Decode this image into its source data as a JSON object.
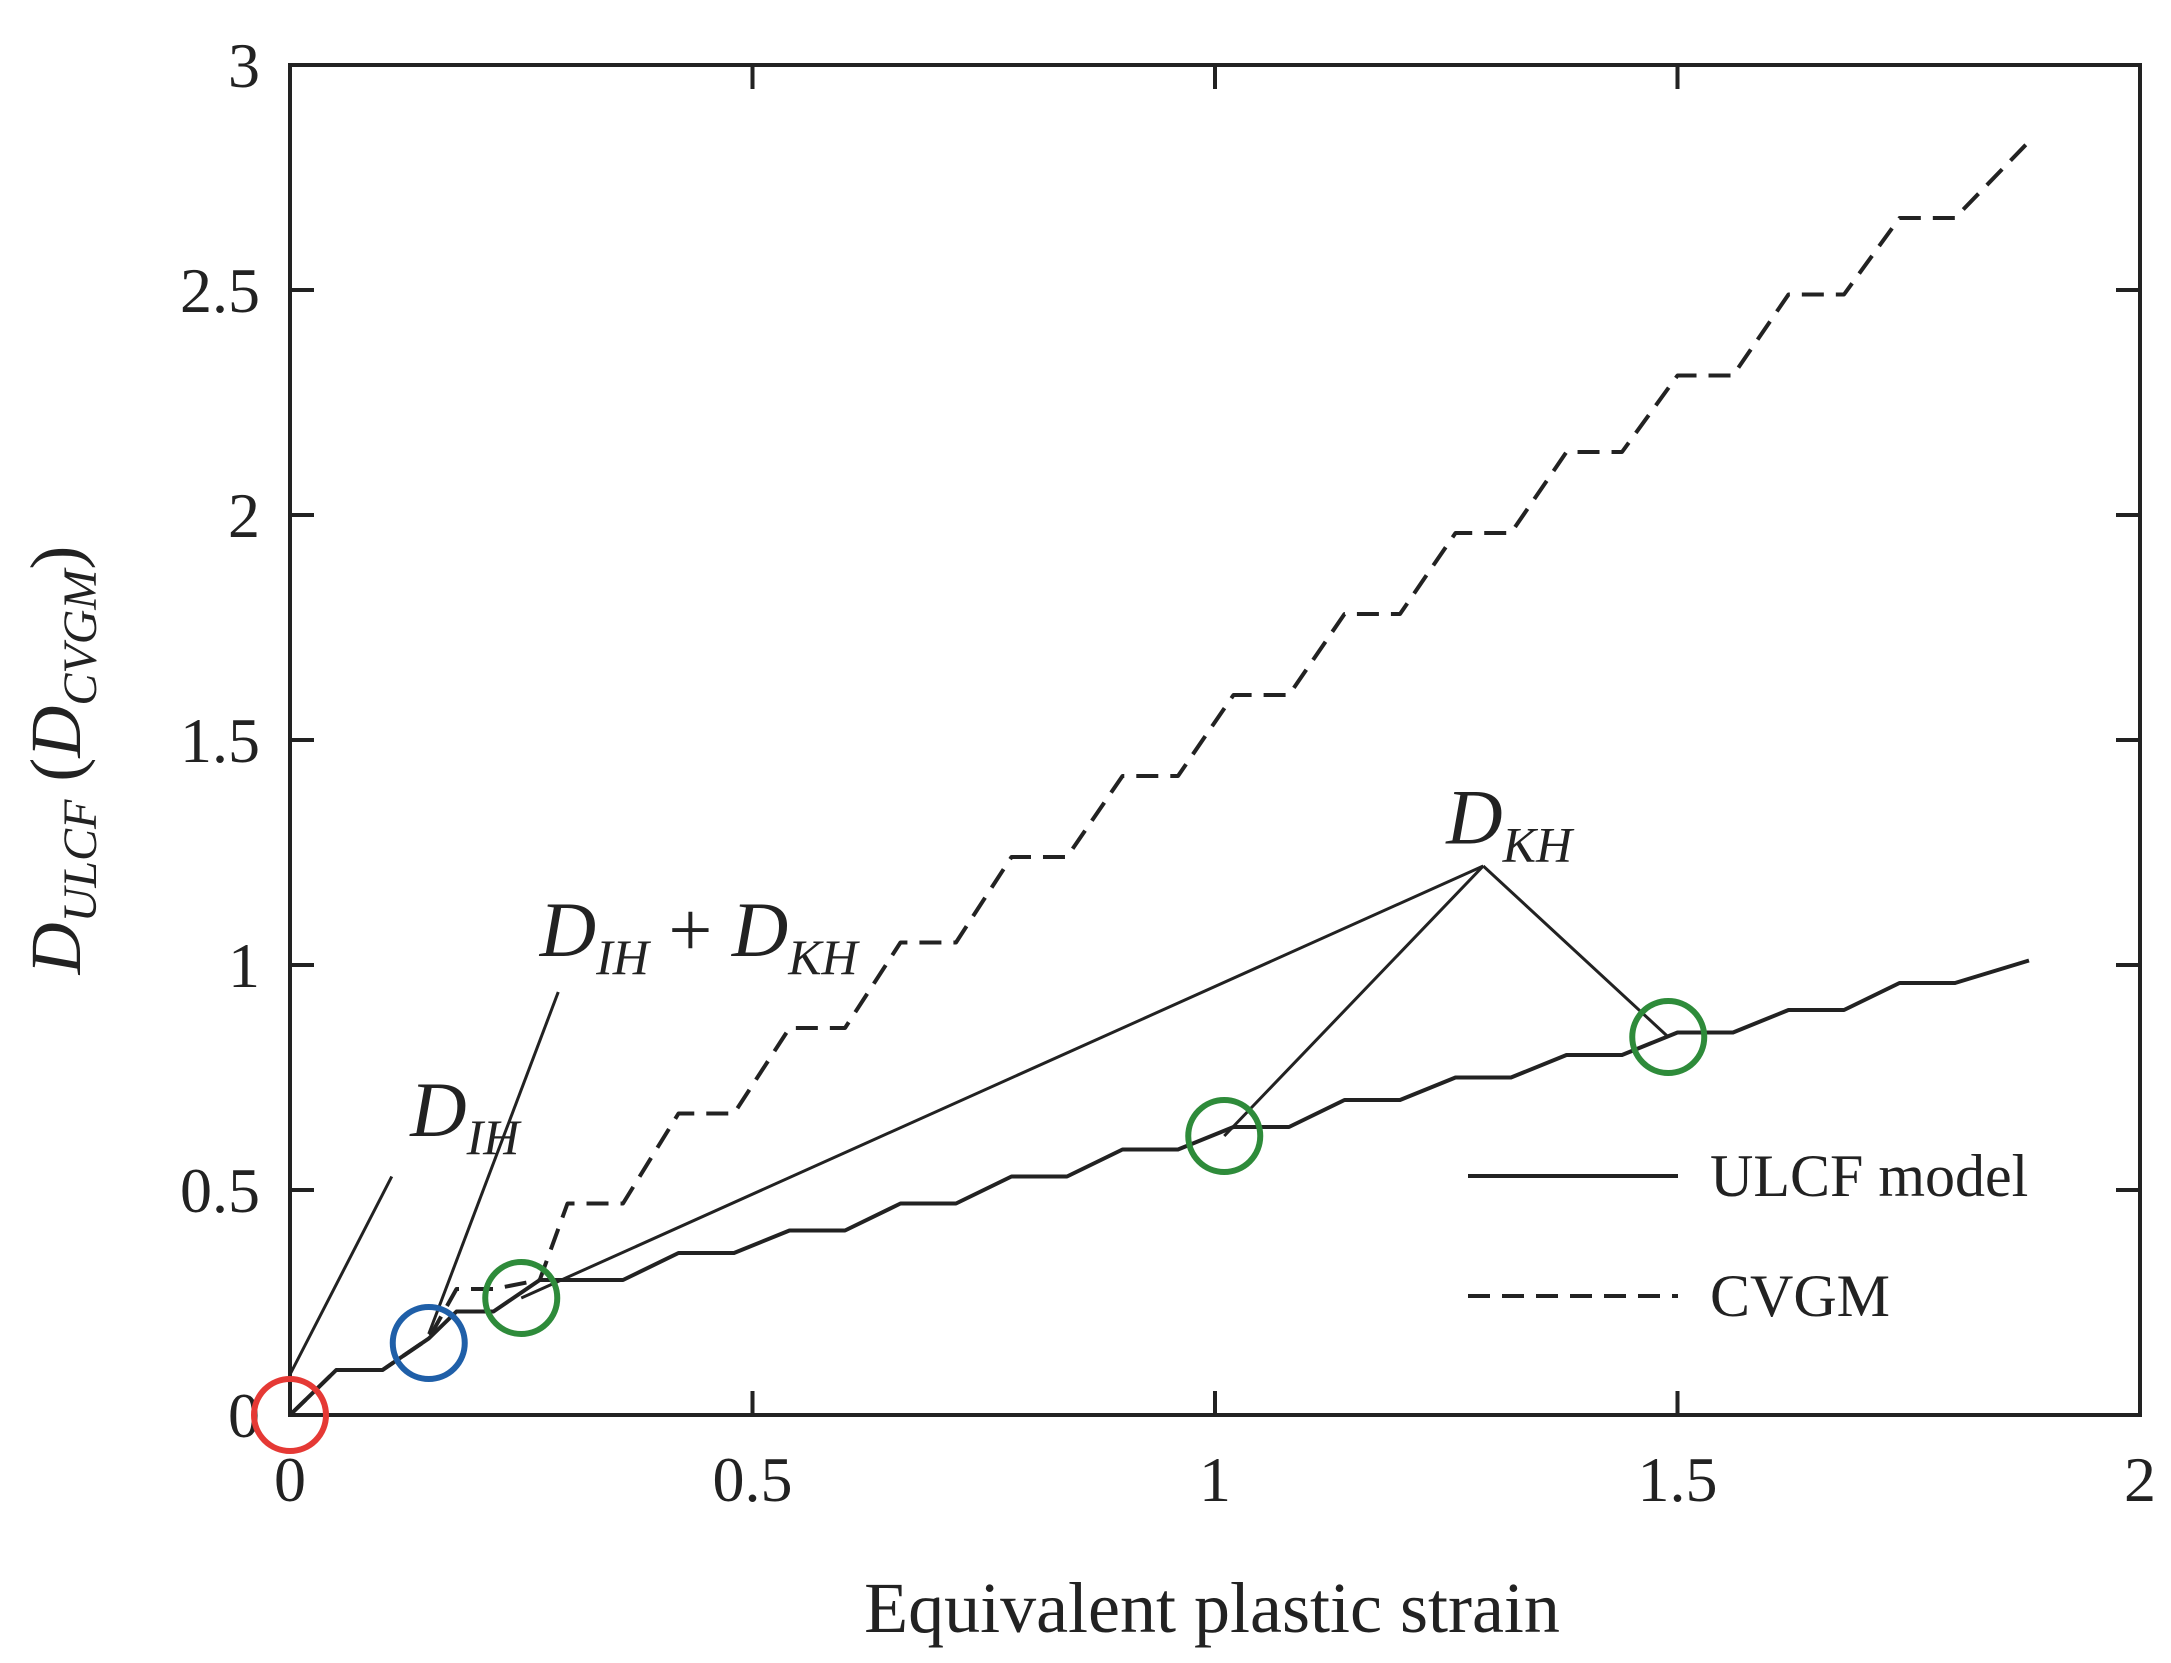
{
  "chart_data": {
    "type": "line",
    "title": "",
    "xlabel": "Equivalent plastic strain",
    "ylabel": {
      "main": "D",
      "main_sub": "ULCF",
      "alt": "D",
      "alt_sub": "CVGM"
    },
    "xlim": [
      0,
      2
    ],
    "ylim": [
      0,
      3
    ],
    "xticks": [
      0,
      0.5,
      1,
      1.5,
      2
    ],
    "xtick_labels": [
      "0",
      "0.5",
      "1",
      "1.5",
      "2"
    ],
    "yticks": [
      0,
      0.5,
      1,
      1.5,
      2,
      2.5,
      3
    ],
    "ytick_labels": [
      "0",
      "0.5",
      "1",
      "1.5",
      "2",
      "2.5",
      "3"
    ],
    "grid": false,
    "legend": {
      "position": "right"
    },
    "series": [
      {
        "name": "ULCF model",
        "style": "solid",
        "color": "#222222",
        "x": [
          0,
          0.05,
          0.1,
          0.15,
          0.18,
          0.22,
          0.27,
          0.3,
          0.36,
          0.42,
          0.48,
          0.54,
          0.6,
          0.66,
          0.72,
          0.78,
          0.84,
          0.9,
          0.96,
          1.02,
          1.08,
          1.14,
          1.2,
          1.26,
          1.32,
          1.38,
          1.44,
          1.5,
          1.56,
          1.62,
          1.68,
          1.74,
          1.8,
          1.88
        ],
        "y": [
          0,
          0.1,
          0.1,
          0.17,
          0.23,
          0.23,
          0.3,
          0.3,
          0.3,
          0.36,
          0.36,
          0.41,
          0.41,
          0.47,
          0.47,
          0.53,
          0.53,
          0.59,
          0.59,
          0.64,
          0.64,
          0.7,
          0.7,
          0.75,
          0.75,
          0.8,
          0.8,
          0.85,
          0.85,
          0.9,
          0.9,
          0.96,
          0.96,
          1.01
        ]
      },
      {
        "name": "CVGM",
        "style": "dashed",
        "color": "#222222",
        "x": [
          0,
          0.05,
          0.1,
          0.15,
          0.18,
          0.22,
          0.27,
          0.3,
          0.36,
          0.42,
          0.48,
          0.54,
          0.6,
          0.66,
          0.72,
          0.78,
          0.84,
          0.9,
          0.96,
          1.02,
          1.08,
          1.14,
          1.2,
          1.26,
          1.32,
          1.38,
          1.44,
          1.5,
          1.56,
          1.62,
          1.68,
          1.74,
          1.8,
          1.88
        ],
        "y": [
          0,
          0.1,
          0.1,
          0.17,
          0.28,
          0.28,
          0.3,
          0.47,
          0.47,
          0.67,
          0.67,
          0.86,
          0.86,
          1.05,
          1.05,
          1.24,
          1.24,
          1.42,
          1.42,
          1.6,
          1.6,
          1.78,
          1.78,
          1.96,
          1.96,
          2.14,
          2.14,
          2.31,
          2.31,
          2.49,
          2.49,
          2.66,
          2.66,
          2.83
        ]
      }
    ],
    "markers": [
      {
        "label": "origin",
        "x": 0.0,
        "y": 0.0,
        "color": "#e53935"
      },
      {
        "label": "D_IH+D_KH point",
        "x": 0.15,
        "y": 0.16,
        "color": "#1f5fa8"
      },
      {
        "label": "D_KH point 1",
        "x": 0.25,
        "y": 0.26,
        "color": "#2e8b3a"
      },
      {
        "label": "D_KH point 2",
        "x": 1.01,
        "y": 0.62,
        "color": "#2e8b3a"
      },
      {
        "label": "D_KH point 3",
        "x": 1.49,
        "y": 0.84,
        "color": "#2e8b3a"
      }
    ],
    "annotations": [
      {
        "main": "D",
        "sub": "IH",
        "tip_x": 0.0,
        "tip_y": 0.09,
        "label_x": 0.13,
        "label_y": 0.62
      },
      {
        "main": "D",
        "sub": "IH",
        "plus": " + ",
        "main2": "D",
        "sub2": "KH",
        "tip_x": 0.15,
        "tip_y": 0.18,
        "label_x": 0.27,
        "label_y": 1.02
      },
      {
        "main": "D",
        "sub": "KH",
        "tip_x": 1.29,
        "tip_y": 1.22,
        "label_x": 1.25,
        "label_y": 1.27,
        "targets": [
          2,
          3,
          4
        ]
      }
    ]
  }
}
